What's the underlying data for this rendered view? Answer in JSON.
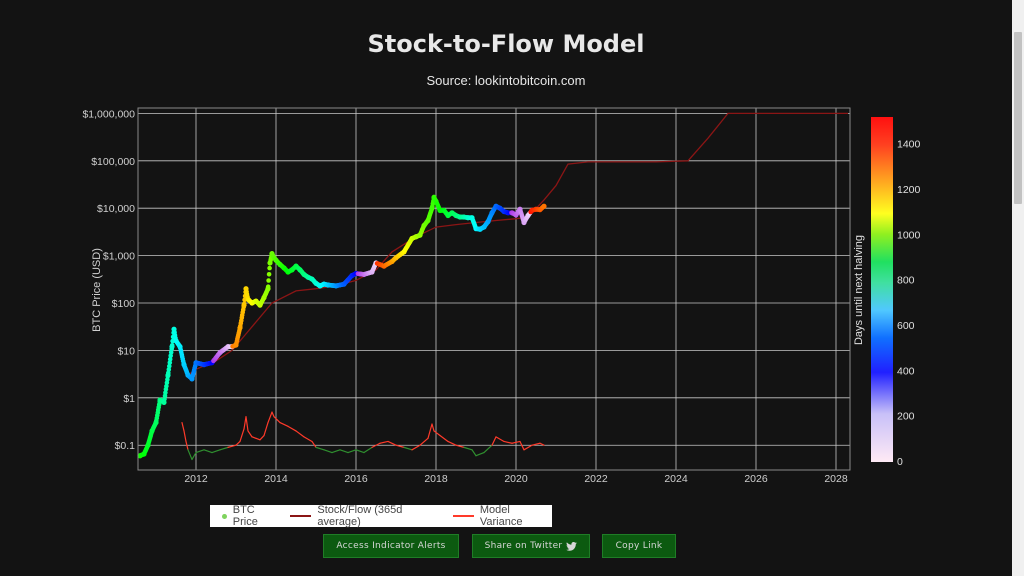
{
  "title": "Stock-to-Flow Model",
  "subtitle": "Source: lookintobitcoin.com",
  "buttons": {
    "alerts": "Access Indicator Alerts",
    "share": "Share on Twitter",
    "copy": "Copy Link"
  },
  "colors": {
    "background": "#131313",
    "grid": "#c8c8c8",
    "sf_line": "#8b1515",
    "variance_high": "#ff3a2a",
    "variance_low": "#2f8f2f",
    "button_bg": "#0c5a10"
  },
  "chart_data": {
    "type": "scatter",
    "ylabel": "BTC Price (USD)",
    "y_scale": "log",
    "ylim": [
      0.03,
      1300000
    ],
    "xlim": [
      2010.55,
      2028.35
    ],
    "x_ticks": [
      2012,
      2014,
      2016,
      2018,
      2020,
      2022,
      2024,
      2026,
      2028
    ],
    "y_ticks": [
      0.1,
      1,
      10,
      100,
      1000,
      10000,
      100000,
      1000000
    ],
    "y_tick_labels": [
      "$0.1",
      "$1",
      "$10",
      "$100",
      "$1,000",
      "$10,000",
      "$100,000",
      "$1,000,000"
    ],
    "grid": true,
    "legend_position": "bottom",
    "legend": [
      "BTC Price",
      "Stock/Flow (365d average)",
      "Model Variance"
    ],
    "colorbar": {
      "label": "Days until next halving",
      "range": [
        0,
        1460
      ],
      "ticks": [
        0,
        200,
        400,
        600,
        800,
        1000,
        1200,
        1400
      ]
    },
    "series": [
      {
        "name": "BTC Price",
        "x": [
          2010.6,
          2010.7,
          2010.8,
          2010.9,
          2011.0,
          2011.1,
          2011.2,
          2011.3,
          2011.4,
          2011.45,
          2011.5,
          2011.6,
          2011.7,
          2011.8,
          2011.9,
          2012.0,
          2012.2,
          2012.4,
          2012.6,
          2012.8,
          2012.9,
          2013.0,
          2013.1,
          2013.2,
          2013.25,
          2013.3,
          2013.4,
          2013.5,
          2013.6,
          2013.7,
          2013.8,
          2013.85,
          2013.9,
          2013.95,
          2014.0,
          2014.1,
          2014.2,
          2014.3,
          2014.4,
          2014.5,
          2014.6,
          2014.7,
          2014.8,
          2014.9,
          2015.0,
          2015.1,
          2015.2,
          2015.3,
          2015.5,
          2015.7,
          2015.9,
          2016.0,
          2016.2,
          2016.4,
          2016.5,
          2016.7,
          2016.9,
          2017.0,
          2017.2,
          2017.4,
          2017.5,
          2017.6,
          2017.7,
          2017.8,
          2017.9,
          2017.95,
          2018.0,
          2018.1,
          2018.2,
          2018.3,
          2018.4,
          2018.5,
          2018.6,
          2018.7,
          2018.8,
          2018.9,
          2019.0,
          2019.1,
          2019.2,
          2019.3,
          2019.4,
          2019.5,
          2019.6,
          2019.7,
          2019.8,
          2019.9,
          2020.0,
          2020.1,
          2020.2,
          2020.3,
          2020.4,
          2020.5,
          2020.6,
          2020.7
        ],
        "y": [
          0.06,
          0.065,
          0.1,
          0.2,
          0.3,
          0.9,
          0.8,
          3,
          12,
          28,
          16,
          12,
          5,
          3,
          2.5,
          5.5,
          5,
          5.5,
          9,
          12,
          12,
          13,
          30,
          90,
          200,
          120,
          100,
          110,
          90,
          130,
          200,
          700,
          1100,
          900,
          800,
          650,
          550,
          450,
          500,
          600,
          500,
          400,
          350,
          320,
          260,
          230,
          250,
          240,
          230,
          250,
          380,
          420,
          400,
          450,
          700,
          600,
          750,
          900,
          1200,
          2300,
          2500,
          2700,
          4300,
          5500,
          10000,
          17000,
          14000,
          9000,
          9000,
          7000,
          8000,
          7000,
          6500,
          6500,
          6300,
          6300,
          3700,
          3600,
          4000,
          5200,
          8000,
          11000,
          10000,
          8500,
          8000,
          8000,
          7200,
          9500,
          5000,
          7000,
          9000,
          9500,
          9300,
          11000
        ]
      },
      {
        "name": "Stock/Flow (365d average)",
        "x": [
          2011.8,
          2012.0,
          2012.5,
          2012.9,
          2013.3,
          2013.9,
          2014.5,
          2015.0,
          2015.5,
          2016.0,
          2016.5,
          2016.9,
          2017.5,
          2018.0,
          2018.5,
          2019.0,
          2019.5,
          2020.0,
          2020.3,
          2020.7,
          2021.0,
          2021.3,
          2021.8,
          2022.5,
          2023.5,
          2024.3,
          2024.8,
          2025.3,
          2028.3
        ],
        "y": [
          3,
          4,
          6,
          10,
          25,
          100,
          180,
          200,
          230,
          300,
          500,
          1200,
          2500,
          4000,
          4500,
          5000,
          5500,
          6000,
          6500,
          15000,
          30000,
          85000,
          95000,
          95000,
          95000,
          100000,
          300000,
          1000000,
          1000000
        ]
      },
      {
        "name": "Model Variance",
        "x": [
          2011.65,
          2011.7,
          2011.75,
          2011.8,
          2011.9,
          2012.0,
          2012.2,
          2012.4,
          2012.6,
          2012.8,
          2013.0,
          2013.1,
          2013.2,
          2013.25,
          2013.3,
          2013.4,
          2013.5,
          2013.6,
          2013.7,
          2013.8,
          2013.9,
          2013.95,
          2014.1,
          2014.3,
          2014.5,
          2014.7,
          2014.9,
          2015.0,
          2015.2,
          2015.4,
          2015.6,
          2015.8,
          2016.0,
          2016.2,
          2016.4,
          2016.6,
          2016.8,
          2017.0,
          2017.2,
          2017.4,
          2017.6,
          2017.8,
          2017.9,
          2017.95,
          2018.1,
          2018.3,
          2018.5,
          2018.7,
          2018.9,
          2019.0,
          2019.2,
          2019.4,
          2019.5,
          2019.7,
          2019.9,
          2020.1,
          2020.2,
          2020.4,
          2020.6,
          2020.7
        ],
        "y": [
          0.3,
          0.2,
          0.12,
          0.08,
          0.05,
          0.07,
          0.08,
          0.07,
          0.08,
          0.09,
          0.1,
          0.12,
          0.22,
          0.4,
          0.2,
          0.15,
          0.14,
          0.13,
          0.16,
          0.3,
          0.5,
          0.4,
          0.3,
          0.25,
          0.2,
          0.15,
          0.12,
          0.09,
          0.08,
          0.07,
          0.08,
          0.07,
          0.08,
          0.07,
          0.09,
          0.11,
          0.12,
          0.1,
          0.09,
          0.08,
          0.1,
          0.14,
          0.28,
          0.2,
          0.16,
          0.12,
          0.1,
          0.09,
          0.08,
          0.06,
          0.07,
          0.1,
          0.15,
          0.12,
          0.11,
          0.12,
          0.08,
          0.1,
          0.11,
          0.1
        ]
      }
    ]
  }
}
